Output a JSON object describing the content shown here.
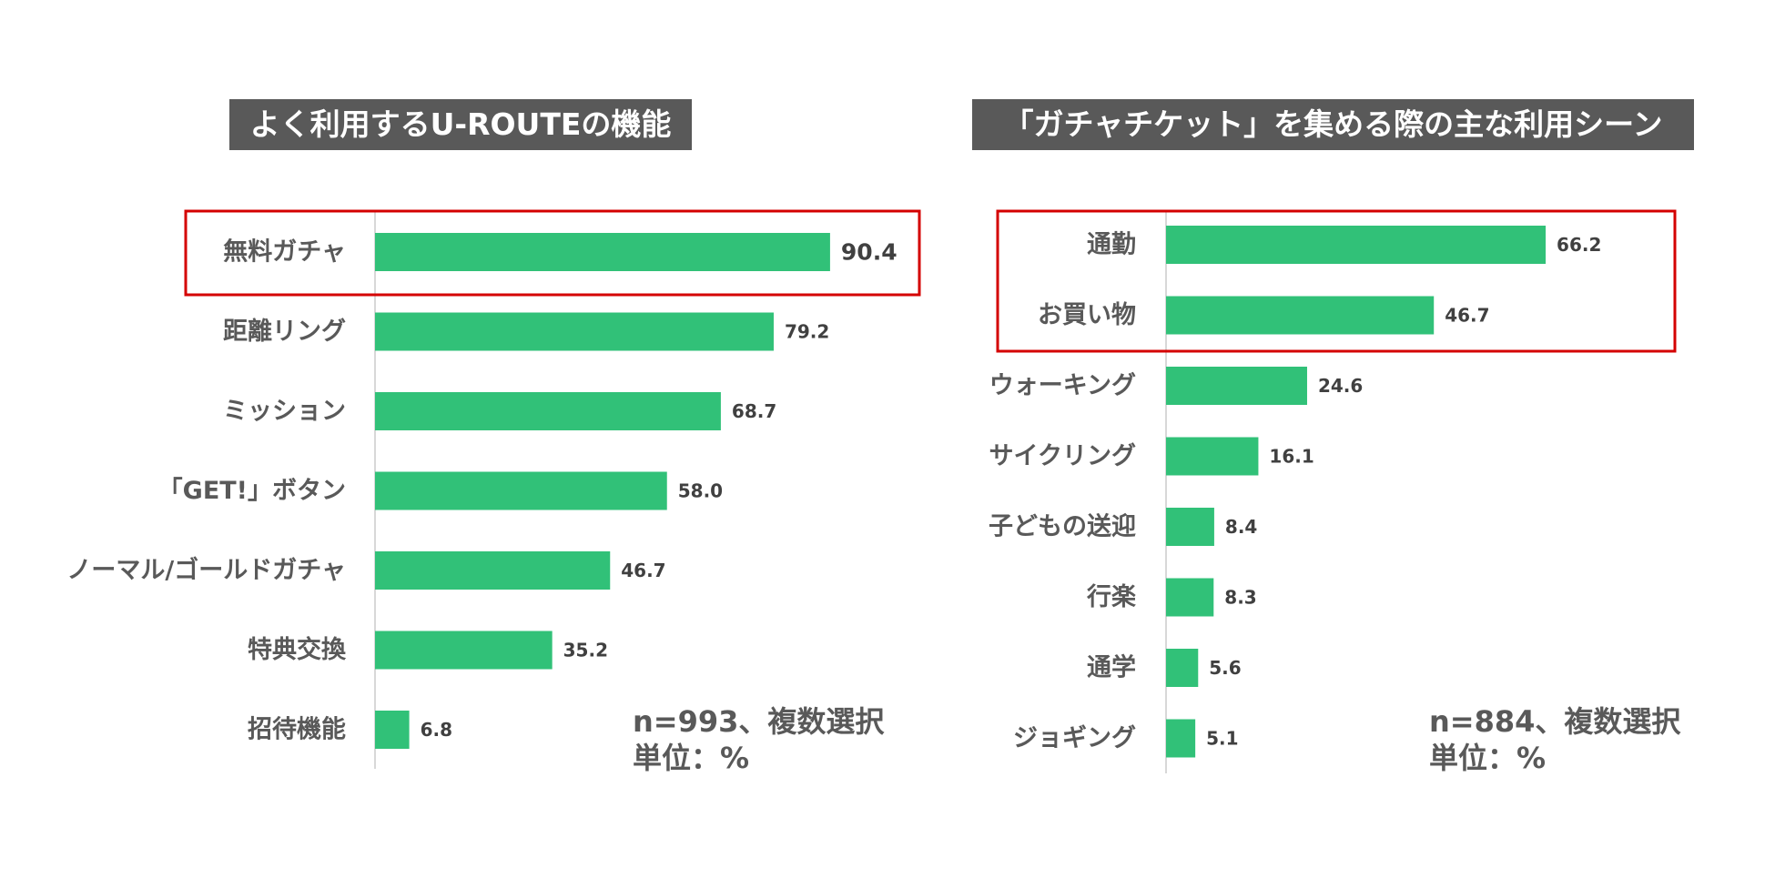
{
  "colors": {
    "bar": "#31c178",
    "highlight": "#d40000",
    "title_bg": "#595959",
    "axis": "#cccccc",
    "text": "#595959"
  },
  "chart_data": [
    {
      "type": "bar",
      "orientation": "horizontal",
      "title": "よく利用するU-ROUTEの機能",
      "categories": [
        "無料ガチャ",
        "距離リング",
        "ミッション",
        "「GET!」ボタン",
        "ノーマル/ゴールドガチャ",
        "特典交換",
        "招待機能"
      ],
      "values": [
        90.4,
        79.2,
        68.7,
        58.0,
        46.7,
        35.2,
        6.8
      ],
      "value_labels": [
        "90.4",
        "79.2",
        "68.7",
        "58.0",
        "46.7",
        "35.2",
        "6.8"
      ],
      "highlighted_categories": [
        "無料ガチャ"
      ],
      "note_line1": "n=993、複数選択",
      "note_line2": "単位：%",
      "xlim": [
        0,
        100
      ],
      "unit": "%"
    },
    {
      "type": "bar",
      "orientation": "horizontal",
      "title": "「ガチャチケット」を集める際の主な利用シーン",
      "categories": [
        "通勤",
        "お買い物",
        "ウォーキング",
        "サイクリング",
        "子どもの送迎",
        "行楽",
        "通学",
        "ジョギング"
      ],
      "values": [
        66.2,
        46.7,
        24.6,
        16.1,
        8.4,
        8.3,
        5.6,
        5.1
      ],
      "value_labels": [
        "66.2",
        "46.7",
        "24.6",
        "16.1",
        "8.4",
        "8.3",
        "5.6",
        "5.1"
      ],
      "highlighted_categories": [
        "通勤",
        "お買い物"
      ],
      "note_line1": "n=884、複数選択",
      "note_line2": "単位：%",
      "xlim": [
        0,
        100
      ],
      "unit": "%"
    }
  ]
}
